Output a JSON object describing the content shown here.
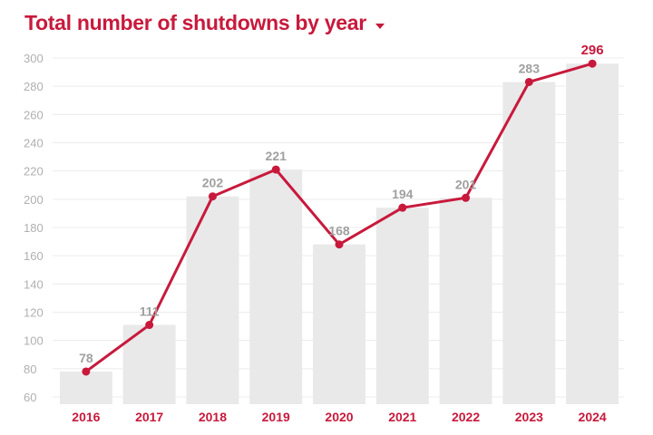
{
  "title": "Total number of shutdowns by year",
  "dropdown_icon": "chevron-down-icon",
  "colors": {
    "accent": "#c8193c",
    "bar": "#e9e9e9",
    "grid": "#ececec",
    "tick": "#b0b0b0",
    "value_label": "#a0a0a0"
  },
  "chart_data": {
    "type": "bar",
    "title": "Total number of shutdowns by year",
    "xlabel": "",
    "ylabel": "",
    "categories": [
      "2016",
      "2017",
      "2018",
      "2019",
      "2020",
      "2021",
      "2022",
      "2023",
      "2024"
    ],
    "values": [
      78,
      111,
      202,
      221,
      168,
      194,
      201,
      283,
      296
    ],
    "overlay": "line",
    "ylim": [
      60,
      300
    ],
    "yticks": [
      60,
      80,
      100,
      120,
      140,
      160,
      180,
      200,
      220,
      240,
      260,
      280,
      300
    ],
    "grid": true,
    "legend": "none",
    "highlight_last_label": true
  }
}
